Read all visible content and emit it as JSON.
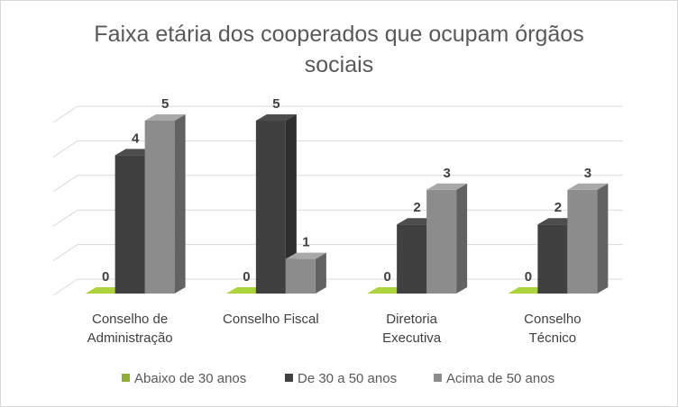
{
  "chart_data": {
    "type": "bar3d",
    "title": "Faixa etária dos cooperados que ocupam órgãos sociais",
    "categories": [
      "Conselho de\nAdministração",
      "Conselho Fiscal",
      "Diretoria\nExecutiva",
      "Conselho\nTécnico"
    ],
    "series": [
      {
        "name": "Abaixo de 30 anos",
        "color": "#8fb034",
        "values": [
          0,
          0,
          0,
          0
        ]
      },
      {
        "name": "De 30 a 50 anos",
        "color": "#404040",
        "values": [
          4,
          5,
          2,
          2
        ]
      },
      {
        "name": "Acima de 50 anos",
        "color": "#8c8c8c",
        "values": [
          5,
          1,
          3,
          3
        ]
      }
    ],
    "ylim": [
      0,
      5
    ],
    "yticks": [
      0,
      1,
      2,
      3,
      4,
      5
    ],
    "grid": true,
    "legend": "bottom"
  }
}
